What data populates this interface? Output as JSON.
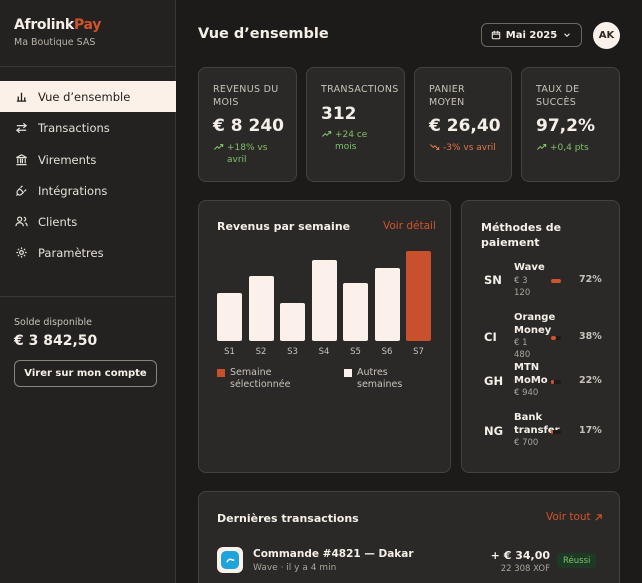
{
  "brand": {
    "name_part1": "Afrolink",
    "name_part2": "Pay",
    "subtitle": "Ma Boutique SAS",
    "accent": "#d0532d"
  },
  "sidebar": {
    "items": [
      {
        "label": "Vue d’ensemble",
        "icon": "chart-icon",
        "active": true
      },
      {
        "label": "Transactions",
        "icon": "arrows-icon",
        "active": false
      },
      {
        "label": "Virements",
        "icon": "bank-icon",
        "active": false
      },
      {
        "label": "Intégrations",
        "icon": "plug-icon",
        "active": false
      },
      {
        "label": "Clients",
        "icon": "users-icon",
        "active": false
      },
      {
        "label": "Paramètres",
        "icon": "gear-icon",
        "active": false
      }
    ],
    "balance_label": "Solde disponible",
    "balance_value": "€ 3 842,50",
    "withdraw_label": "Virer sur mon compte"
  },
  "header": {
    "title": "Vue d’ensemble",
    "month": "Mai 2025",
    "avatar": "AK"
  },
  "kpis": [
    {
      "label": "REVENUS DU MOIS",
      "value": "€ 8 240",
      "delta": "+18% vs avril",
      "trend": "up"
    },
    {
      "label": "TRANSACTIONS",
      "value": "312",
      "delta": "+24 ce mois",
      "trend": "up"
    },
    {
      "label": "PANIER MOYEN",
      "value": "€ 26,40",
      "delta": "-3% vs avril",
      "trend": "down"
    },
    {
      "label": "TAUX DE SUCCÈS",
      "value": "97,2%",
      "delta": "+0,4 pts",
      "trend": "up"
    }
  ],
  "revenue_chart": {
    "title": "Revenus par semaine",
    "link": "Voir détail",
    "legend_selected": "Semaine sélectionnée",
    "legend_other": "Autres semaines",
    "colors": {
      "selected": "#c9502c",
      "other": "#fbf0ea"
    }
  },
  "chart_data": {
    "type": "bar",
    "title": "Revenus par semaine",
    "categories": [
      "S1",
      "S2",
      "S3",
      "S4",
      "S5",
      "S6",
      "S7"
    ],
    "values": [
      48,
      65,
      38,
      81,
      58,
      73,
      90
    ],
    "selected_index": 6,
    "legend": [
      "Semaine sélectionnée",
      "Autres semaines"
    ],
    "ylim": [
      0,
      100
    ],
    "grid": false
  },
  "payment_methods": {
    "title": "Méthodes de paiement",
    "items": [
      {
        "code": "SN",
        "name": "Wave",
        "amount": "€ 3 120",
        "pct_label": "72%",
        "pct": 0.72
      },
      {
        "code": "CI",
        "name": "Orange Money",
        "amount": "€ 1 480",
        "pct_label": "38%",
        "pct": 0.38
      },
      {
        "code": "GH",
        "name": "MTN MoMo",
        "amount": "€ 940",
        "pct_label": "22%",
        "pct": 0.22
      },
      {
        "code": "NG",
        "name": "Bank transfer",
        "amount": "€ 700",
        "pct_label": "17%",
        "pct": 0.17
      }
    ]
  },
  "recent": {
    "title": "Dernières transactions",
    "link": "Voir tout",
    "rows": [
      {
        "icon": "wave-icon",
        "title": "Commande #4821 — Dakar",
        "sub": "Wave · il y a 4 min",
        "amount": "+ € 34,00",
        "converted": "22 308 XOF",
        "status": "Réussi"
      }
    ]
  }
}
